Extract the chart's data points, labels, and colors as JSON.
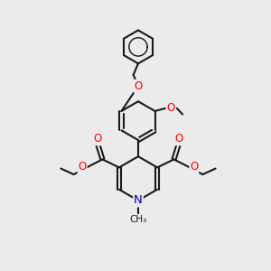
{
  "bg_color": "#ebebeb",
  "bond_color": "#1a1a1a",
  "bond_width": 1.5,
  "atom_colors": {
    "O": "#ff0000",
    "N": "#0000bb",
    "C": "#1a1a1a"
  },
  "figsize": [
    3.0,
    3.0
  ],
  "dpi": 100,
  "xlim": [
    0,
    10
  ],
  "ylim": [
    0,
    10
  ]
}
